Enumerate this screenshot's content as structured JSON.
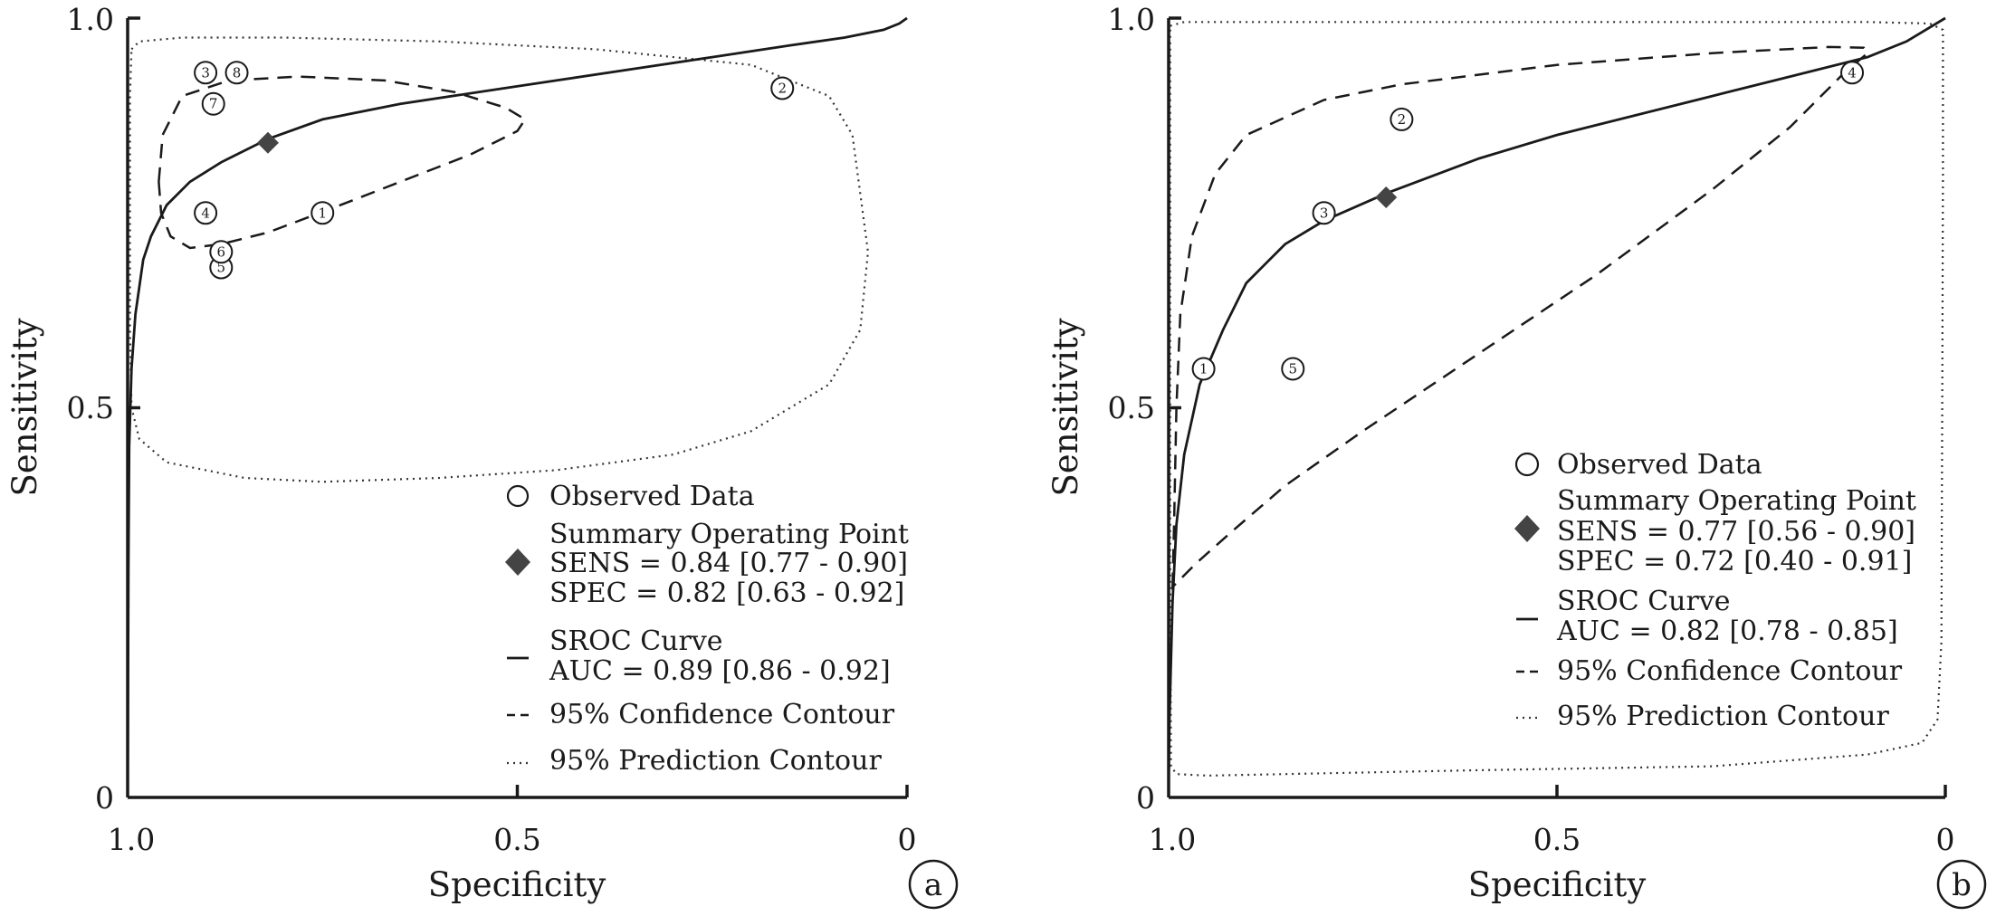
{
  "chart_data": [
    {
      "type": "scatter",
      "panel_label": "a",
      "xlabel": "Specificity",
      "ylabel": "Sensitivity",
      "xlim": [
        1.0,
        0.0
      ],
      "ylim": [
        0.0,
        1.0
      ],
      "x_ticks": [
        "1.0",
        "0.5",
        "0"
      ],
      "y_ticks": [
        "0",
        "0.5",
        "1.0"
      ],
      "observed_points": [
        {
          "label": "1",
          "spec": 0.75,
          "sens": 0.75
        },
        {
          "label": "2",
          "spec": 0.16,
          "sens": 0.91
        },
        {
          "label": "3",
          "spec": 0.9,
          "sens": 0.93
        },
        {
          "label": "4",
          "spec": 0.9,
          "sens": 0.75
        },
        {
          "label": "5",
          "spec": 0.88,
          "sens": 0.68
        },
        {
          "label": "6",
          "spec": 0.88,
          "sens": 0.7
        },
        {
          "label": "7",
          "spec": 0.89,
          "sens": 0.89
        },
        {
          "label": "8",
          "spec": 0.86,
          "sens": 0.93
        }
      ],
      "summary_point": {
        "spec": 0.82,
        "sens": 0.84
      },
      "sroc_curve": [
        [
          1.0,
          0.0
        ],
        [
          0.999,
          0.3
        ],
        [
          0.998,
          0.45
        ],
        [
          0.995,
          0.55
        ],
        [
          0.99,
          0.62
        ],
        [
          0.98,
          0.69
        ],
        [
          0.97,
          0.72
        ],
        [
          0.95,
          0.76
        ],
        [
          0.92,
          0.79
        ],
        [
          0.88,
          0.815
        ],
        [
          0.82,
          0.845
        ],
        [
          0.75,
          0.87
        ],
        [
          0.65,
          0.89
        ],
        [
          0.55,
          0.905
        ],
        [
          0.45,
          0.92
        ],
        [
          0.35,
          0.935
        ],
        [
          0.25,
          0.95
        ],
        [
          0.15,
          0.965
        ],
        [
          0.08,
          0.975
        ],
        [
          0.03,
          0.985
        ],
        [
          0.01,
          0.993
        ],
        [
          0.0,
          1.0
        ]
      ],
      "confidence_contour": [
        [
          0.96,
          0.79
        ],
        [
          0.955,
          0.85
        ],
        [
          0.93,
          0.9
        ],
        [
          0.87,
          0.92
        ],
        [
          0.78,
          0.925
        ],
        [
          0.67,
          0.92
        ],
        [
          0.58,
          0.905
        ],
        [
          0.515,
          0.885
        ],
        [
          0.49,
          0.87
        ],
        [
          0.5,
          0.855
        ],
        [
          0.56,
          0.825
        ],
        [
          0.65,
          0.79
        ],
        [
          0.74,
          0.755
        ],
        [
          0.82,
          0.725
        ],
        [
          0.88,
          0.71
        ],
        [
          0.92,
          0.705
        ],
        [
          0.945,
          0.72
        ],
        [
          0.957,
          0.75
        ],
        [
          0.96,
          0.79
        ]
      ],
      "prediction_contour": [
        [
          0.995,
          0.96
        ],
        [
          0.985,
          0.97
        ],
        [
          0.93,
          0.975
        ],
        [
          0.8,
          0.975
        ],
        [
          0.6,
          0.97
        ],
        [
          0.4,
          0.96
        ],
        [
          0.2,
          0.94
        ],
        [
          0.1,
          0.9
        ],
        [
          0.07,
          0.85
        ],
        [
          0.05,
          0.7
        ],
        [
          0.06,
          0.6
        ],
        [
          0.1,
          0.53
        ],
        [
          0.2,
          0.47
        ],
        [
          0.3,
          0.44
        ],
        [
          0.45,
          0.42
        ],
        [
          0.6,
          0.41
        ],
        [
          0.75,
          0.405
        ],
        [
          0.85,
          0.41
        ],
        [
          0.95,
          0.43
        ],
        [
          0.985,
          0.46
        ],
        [
          0.995,
          0.5
        ],
        [
          0.997,
          0.6
        ],
        [
          0.997,
          0.75
        ],
        [
          0.997,
          0.9
        ],
        [
          0.995,
          0.96
        ]
      ],
      "legend": {
        "observed": "Observed Data",
        "summary_title": "Summary Operating Point",
        "sens": "SENS = 0.84 [0.77 - 0.90]",
        "spec": "SPEC = 0.82 [0.63 - 0.92]",
        "sroc": "SROC Curve",
        "auc": "AUC = 0.89 [0.86 - 0.92]",
        "confidence": "95% Confidence Contour",
        "prediction": "95% Prediction Contour"
      }
    },
    {
      "type": "scatter",
      "panel_label": "b",
      "xlabel": "Specificity",
      "ylabel": "Sensitivity",
      "xlim": [
        1.0,
        0.0
      ],
      "ylim": [
        0.0,
        1.0
      ],
      "x_ticks": [
        "1.0",
        "0.5",
        "0"
      ],
      "y_ticks": [
        "0",
        "0.5",
        "1.0"
      ],
      "observed_points": [
        {
          "label": "1",
          "spec": 0.955,
          "sens": 0.55
        },
        {
          "label": "2",
          "spec": 0.7,
          "sens": 0.87
        },
        {
          "label": "3",
          "spec": 0.8,
          "sens": 0.75
        },
        {
          "label": "4",
          "spec": 0.12,
          "sens": 0.93
        },
        {
          "label": "5",
          "spec": 0.84,
          "sens": 0.55
        }
      ],
      "summary_point": {
        "spec": 0.72,
        "sens": 0.77
      },
      "sroc_curve": [
        [
          1.0,
          0.02
        ],
        [
          0.999,
          0.1
        ],
        [
          0.995,
          0.25
        ],
        [
          0.99,
          0.35
        ],
        [
          0.98,
          0.44
        ],
        [
          0.96,
          0.53
        ],
        [
          0.93,
          0.6
        ],
        [
          0.9,
          0.66
        ],
        [
          0.85,
          0.71
        ],
        [
          0.8,
          0.74
        ],
        [
          0.72,
          0.775
        ],
        [
          0.6,
          0.82
        ],
        [
          0.5,
          0.85
        ],
        [
          0.4,
          0.875
        ],
        [
          0.3,
          0.9
        ],
        [
          0.2,
          0.925
        ],
        [
          0.1,
          0.95
        ],
        [
          0.05,
          0.97
        ],
        [
          0.0,
          1.0
        ]
      ],
      "confidence_contour": [
        [
          0.995,
          0.27
        ],
        [
          0.993,
          0.35
        ],
        [
          0.99,
          0.5
        ],
        [
          0.985,
          0.62
        ],
        [
          0.97,
          0.72
        ],
        [
          0.94,
          0.8
        ],
        [
          0.9,
          0.85
        ],
        [
          0.8,
          0.895
        ],
        [
          0.7,
          0.915
        ],
        [
          0.5,
          0.94
        ],
        [
          0.3,
          0.955
        ],
        [
          0.15,
          0.963
        ],
        [
          0.105,
          0.962
        ],
        [
          0.1,
          0.955
        ],
        [
          0.13,
          0.93
        ],
        [
          0.2,
          0.86
        ],
        [
          0.3,
          0.78
        ],
        [
          0.45,
          0.67
        ],
        [
          0.6,
          0.57
        ],
        [
          0.75,
          0.47
        ],
        [
          0.85,
          0.4
        ],
        [
          0.92,
          0.34
        ],
        [
          0.965,
          0.3
        ],
        [
          0.985,
          0.28
        ],
        [
          0.995,
          0.27
        ]
      ],
      "prediction_contour": [
        [
          0.998,
          0.99
        ],
        [
          0.98,
          0.995
        ],
        [
          0.7,
          0.995
        ],
        [
          0.4,
          0.995
        ],
        [
          0.1,
          0.995
        ],
        [
          0.02,
          0.993
        ],
        [
          0.003,
          0.985
        ],
        [
          0.003,
          0.8
        ],
        [
          0.004,
          0.5
        ],
        [
          0.005,
          0.2
        ],
        [
          0.01,
          0.1
        ],
        [
          0.03,
          0.07
        ],
        [
          0.1,
          0.055
        ],
        [
          0.3,
          0.04
        ],
        [
          0.6,
          0.035
        ],
        [
          0.85,
          0.03
        ],
        [
          0.95,
          0.028
        ],
        [
          0.99,
          0.03
        ],
        [
          0.997,
          0.04
        ],
        [
          0.998,
          0.3
        ],
        [
          0.998,
          0.7
        ],
        [
          0.998,
          0.99
        ]
      ],
      "legend": {
        "observed": "Observed Data",
        "summary_title": "Summary Operating Point",
        "sens": "SENS = 0.77 [0.56 - 0.90]",
        "spec": "SPEC = 0.72 [0.40 - 0.91]",
        "sroc": "SROC Curve",
        "auc": "AUC = 0.82 [0.78 - 0.85]",
        "confidence": "95% Confidence Contour",
        "prediction": "95% Prediction Contour"
      }
    }
  ]
}
